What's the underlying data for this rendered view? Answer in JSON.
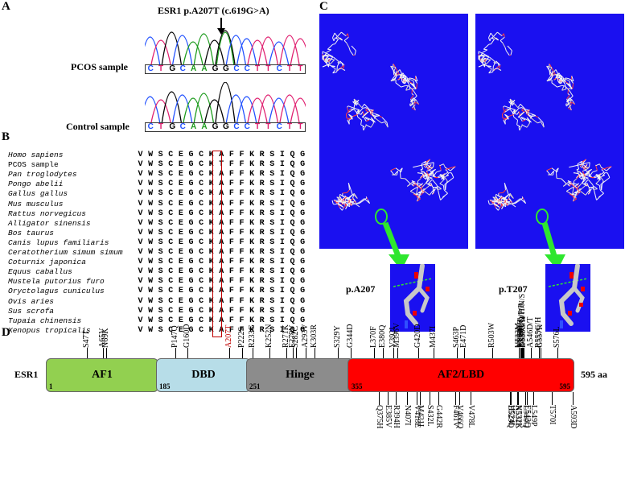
{
  "panels": {
    "a": "A",
    "b": "B",
    "c": "C",
    "d": "D"
  },
  "chromatogram": {
    "title": "ESR1 p.A207T (c.619G>A)",
    "pcos_label": "PCOS sample",
    "control_label": "Control sample",
    "pcos_seq": [
      "C",
      "T",
      "G",
      "C",
      "A",
      "A",
      "G",
      "G",
      "C",
      "C",
      "T",
      "T",
      "C",
      "T",
      "T"
    ],
    "control_seq": [
      "C",
      "T",
      "G",
      "C",
      "A",
      "A",
      "G",
      "G",
      "C",
      "C",
      "T",
      "T",
      "C",
      "T",
      "T"
    ]
  },
  "alignment": {
    "rows": [
      {
        "name": "Homo sapiens",
        "seq": "VWSCEGCKAFFKRSIQG",
        "italic": true
      },
      {
        "name": "PCOS sample",
        "seq": "VWSCEGCKTFFKRSIQG",
        "italic": false
      },
      {
        "name": "Pan troglodytes",
        "seq": "VWSCEGCKAFFKRSIQG",
        "italic": true
      },
      {
        "name": "Pongo abelii",
        "seq": "VWSCEGCKAFFKRSIQG",
        "italic": true
      },
      {
        "name": "Gallus gallus",
        "seq": "VWSCEGCKAFFKRSIQG",
        "italic": true
      },
      {
        "name": "Mus musculus",
        "seq": "VWSCEGCKAFFKRSIQG",
        "italic": true
      },
      {
        "name": "Rattus norvegicus",
        "seq": "VWSCEGCKAFFKRSIQG",
        "italic": true
      },
      {
        "name": "Alligator sinensis",
        "seq": "VWSCEGCKAFFKRSIQG",
        "italic": true
      },
      {
        "name": "Bos taurus",
        "seq": "VWSCEGCKAFFKRSIQG",
        "italic": true
      },
      {
        "name": "Canis lupus familiaris",
        "seq": "VWSCEGCKAFFKRSIQG",
        "italic": true
      },
      {
        "name": "Ceratotherium simum simum",
        "seq": "VWSCEGCKAFFKRSIQG",
        "italic": true
      },
      {
        "name": "Coturnix japonica",
        "seq": "VWSCEGCKAFFKRSIQG",
        "italic": true
      },
      {
        "name": "Equus caballus",
        "seq": "VWSCEGCKAFFKRSIQG",
        "italic": true
      },
      {
        "name": "Mustela putorius furo",
        "seq": "VWSCEGCKAFFKRSIQG",
        "italic": true
      },
      {
        "name": "Oryctolagus cuniculus",
        "seq": "VWSCEGCKAFFKRSIQG",
        "italic": true
      },
      {
        "name": "Ovis aries",
        "seq": "VWSCEGCKAFFKRSIQG",
        "italic": true
      },
      {
        "name": "Sus scrofa",
        "seq": "VWSCEGCKAFFKRSIQG",
        "italic": true
      },
      {
        "name": "Tupaia chinensis",
        "seq": "VWSCEGCKAFFKRSIQG",
        "italic": true
      },
      {
        "name": "Xenopus tropicalis",
        "seq": "VWSCEGCKAFFKRSIQG",
        "italic": true
      }
    ]
  },
  "structure": {
    "left_label": "p.A207",
    "right_label": "p.T207",
    "background_color": "#1a10f0",
    "arrow_color": "#2ee62e"
  },
  "domain_map": {
    "gene": "ESR1",
    "length_label": "595 aa",
    "domains": [
      {
        "name": "AF1",
        "start_label": "1",
        "color": "#92d050"
      },
      {
        "name": "DBD",
        "start_label": "185",
        "color": "#b7dde8"
      },
      {
        "name": "Hinge",
        "start_label": "251",
        "color": "#8c8c8c"
      },
      {
        "name": "AF2/LBD",
        "start_label": "355",
        "end_label": "595",
        "color": "#ff0000"
      }
    ],
    "top_mutations": [
      {
        "label": "S47T",
        "pos": 47
      },
      {
        "label": "A65V",
        "pos": 65
      },
      {
        "label": "N69K",
        "pos": 69
      },
      {
        "label": "P147Q",
        "pos": 147
      },
      {
        "label": "G160D",
        "pos": 160
      },
      {
        "label": "A207T",
        "pos": 207,
        "highlight": true
      },
      {
        "label": "P222S",
        "pos": 222
      },
      {
        "label": "R233G",
        "pos": 233
      },
      {
        "label": "K252N",
        "pos": 252
      },
      {
        "label": "R271K",
        "pos": 271
      },
      {
        "label": "E279V",
        "pos": 279
      },
      {
        "label": "S282C",
        "pos": 282
      },
      {
        "label": "A293V",
        "pos": 293
      },
      {
        "label": "K303R",
        "pos": 303
      },
      {
        "label": "S329Y",
        "pos": 329
      },
      {
        "label": "G344D",
        "pos": 344
      },
      {
        "label": "L370F",
        "pos": 370
      },
      {
        "label": "E380Q",
        "pos": 380
      },
      {
        "label": "V392I",
        "pos": 392
      },
      {
        "label": "M396V",
        "pos": 396
      },
      {
        "label": "G420D",
        "pos": 420
      },
      {
        "label": "M437I",
        "pos": 437
      },
      {
        "label": "S463P",
        "pos": 463
      },
      {
        "label": "E471D",
        "pos": 471
      },
      {
        "label": "R503W",
        "pos": 503
      },
      {
        "label": "V533M",
        "pos": 533
      },
      {
        "label": "V534E",
        "pos": 534
      },
      {
        "label": "P535H/T",
        "pos": 535
      },
      {
        "label": "L536H/Q/P/R",
        "pos": 536
      },
      {
        "label": "Y537C/D/H/N/S",
        "pos": 537
      },
      {
        "label": "D538G/N",
        "pos": 538
      },
      {
        "label": "A546D/T",
        "pos": 546
      },
      {
        "label": "R555C/H",
        "pos": 555
      },
      {
        "label": "G557R",
        "pos": 557
      },
      {
        "label": "S576L",
        "pos": 576
      }
    ],
    "bottom_mutations": [
      {
        "label": "Q375H",
        "pos": 375
      },
      {
        "label": "E385V",
        "pos": 385
      },
      {
        "label": "R394H",
        "pos": 394
      },
      {
        "label": "N407I",
        "pos": 407
      },
      {
        "label": "V418E",
        "pos": 418
      },
      {
        "label": "M421I",
        "pos": 421
      },
      {
        "label": "S432L",
        "pos": 432
      },
      {
        "label": "G442R",
        "pos": 442
      },
      {
        "label": "F461V",
        "pos": 461
      },
      {
        "label": "V466Q",
        "pos": 466
      },
      {
        "label": "V478L",
        "pos": 478
      },
      {
        "label": "E523Q",
        "pos": 523
      },
      {
        "label": "H524L",
        "pos": 524
      },
      {
        "label": "K531E",
        "pos": 531
      },
      {
        "label": "N532K",
        "pos": 532
      },
      {
        "label": "L540Q",
        "pos": 540
      },
      {
        "label": "E542Q",
        "pos": 542
      },
      {
        "label": "L549P",
        "pos": 549
      },
      {
        "label": "T570I",
        "pos": 570
      },
      {
        "label": "A593D",
        "pos": 593
      }
    ]
  }
}
